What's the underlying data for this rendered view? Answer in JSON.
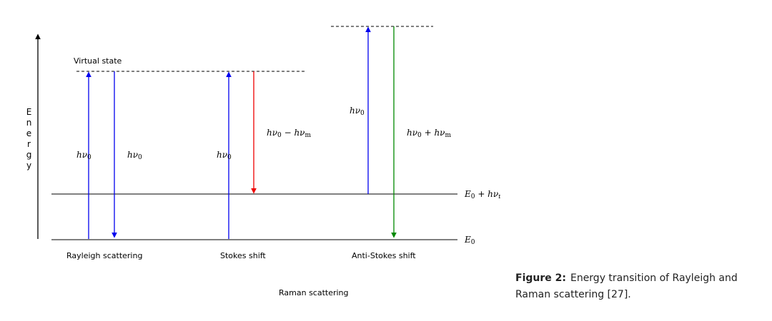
{
  "diagram": {
    "axis_label": "Energy",
    "virtual_state": "Virtual state",
    "levels": {
      "ground": [
        "E",
        "0"
      ],
      "vibrational": [
        "E",
        "0",
        " + hν",
        "m"
      ]
    },
    "transitions": {
      "rayleigh_up": [
        "hν",
        "0"
      ],
      "rayleigh_down": [
        "hν",
        "0"
      ],
      "stokes_up": [
        "hν",
        "0"
      ],
      "stokes_down": [
        "hν",
        "0",
        " − hν",
        "m"
      ],
      "anti_stokes_up": [
        "hν",
        "0"
      ],
      "anti_stokes_down": [
        "hν",
        "0",
        " + hν",
        "m"
      ]
    },
    "captions": {
      "rayleigh": "Rayleigh scattering",
      "stokes": "Stokes shift",
      "anti_stokes": "Anti-Stokes shift",
      "raman": "Raman scattering"
    }
  },
  "figure_caption": {
    "label": "Figure 2:",
    "text": "Energy transition of Rayleigh and Raman scattering [27]."
  }
}
